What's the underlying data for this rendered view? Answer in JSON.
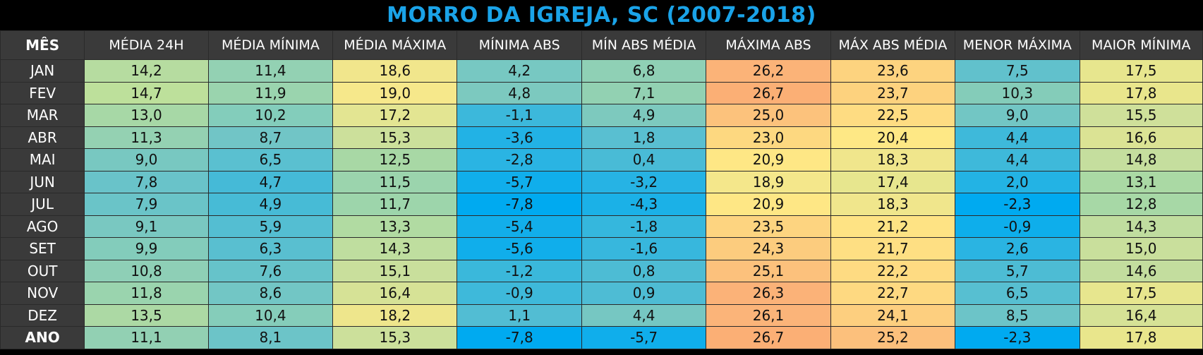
{
  "title": "MORRO DA IGREJA, SC (2007-2018)",
  "columns": [
    "MÊS",
    "MÉDIA 24H",
    "MÉDIA MÍNIMA",
    "MÉDIA MÁXIMA",
    "MÍNIMA ABS",
    "MÍN ABS MÉDIA",
    "MÁXIMA ABS",
    "MÁX ABS MÉDIA",
    "MENOR MÁXIMA",
    "MAIOR MÍNIMA"
  ],
  "rows": [
    {
      "label": "JAN",
      "values": [
        "14,2",
        "11,4",
        "18,6",
        "4,2",
        "6,8",
        "26,2",
        "23,6",
        "7,5",
        "17,5"
      ],
      "colors": [
        "#b6dca0",
        "#93d1b3",
        "#f1e68c",
        "#77c8c2",
        "#8fd0b5",
        "#fbb378",
        "#fdd37f",
        "#61c1cc",
        "#e7e68e"
      ]
    },
    {
      "label": "FEV",
      "values": [
        "14,7",
        "11,9",
        "19,0",
        "4,8",
        "7,1",
        "26,7",
        "23,7",
        "10,3",
        "17,8"
      ],
      "colors": [
        "#bde09b",
        "#9ad4ae",
        "#f6e88b",
        "#7cc9bf",
        "#92d1b2",
        "#fbaf75",
        "#fdd27e",
        "#84ccb9",
        "#e9e68c"
      ]
    },
    {
      "label": "MAR",
      "values": [
        "13,0",
        "10,2",
        "17,2",
        "-1,1",
        "4,9",
        "25,0",
        "22,5",
        "9,0",
        "15,5"
      ],
      "colors": [
        "#a7d8a6",
        "#83cdbb",
        "#e3e592",
        "#3cb8db",
        "#7dc9be",
        "#fcc27c",
        "#fedc82",
        "#72c6c4",
        "#cfe09a"
      ]
    },
    {
      "label": "ABR",
      "values": [
        "11,3",
        "8,7",
        "15,3",
        "-3,6",
        "1,8",
        "23,0",
        "20,4",
        "4,4",
        "16,6"
      ],
      "colors": [
        "#94d1b2",
        "#71c5c6",
        "#cce09b",
        "#22b2e5",
        "#59bfd1",
        "#fdd880",
        "#fee885",
        "#3eb9da",
        "#dbe394"
      ]
    },
    {
      "label": "MAI",
      "values": [
        "9,0",
        "6,5",
        "12,5",
        "-2,8",
        "0,4",
        "20,9",
        "18,3",
        "4,4",
        "14,8"
      ],
      "colors": [
        "#78c8c1",
        "#5ac0d0",
        "#a8d8a5",
        "#2ab4e3",
        "#49bbd6",
        "#fee785",
        "#f0e68c",
        "#3eb9da",
        "#c5de9e"
      ]
    },
    {
      "label": "JUN",
      "values": [
        "7,8",
        "4,7",
        "11,5",
        "-5,7",
        "-3,2",
        "18,9",
        "17,4",
        "2,0",
        "13,1"
      ],
      "colors": [
        "#69c3c9",
        "#45bad7",
        "#9bd4ad",
        "#10aeeb",
        "#26b3e4",
        "#f4e78b",
        "#e7e68e",
        "#23b3e4",
        "#aad9a4"
      ]
    },
    {
      "label": "JUL",
      "values": [
        "7,9",
        "4,9",
        "11,7",
        "-7,8",
        "-4,3",
        "20,9",
        "18,3",
        "-2,3",
        "12,8"
      ],
      "colors": [
        "#6ac4c8",
        "#47bbd6",
        "#9dd5ab",
        "#00aaf0",
        "#1bb1e7",
        "#fee785",
        "#f0e68c",
        "#00aaf0",
        "#a7d8a6"
      ]
    },
    {
      "label": "AGO",
      "values": [
        "9,1",
        "5,9",
        "13,3",
        "-5,4",
        "-1,8",
        "23,5",
        "21,2",
        "-0,9",
        "14,3"
      ],
      "colors": [
        "#79c8c1",
        "#54bed2",
        "#b1dba2",
        "#12aeea",
        "#35b7dd",
        "#fdd480",
        "#fee384",
        "#0eaeeb",
        "#c0dd9f"
      ]
    },
    {
      "label": "SET",
      "values": [
        "9,9",
        "6,3",
        "14,3",
        "-5,6",
        "-1,6",
        "24,3",
        "21,7",
        "2,6",
        "15,0"
      ],
      "colors": [
        "#83ccbb",
        "#59bfd0",
        "#bfde9f",
        "#10aeeb",
        "#37b7dd",
        "#fccc7e",
        "#fedf83",
        "#2ab4e2",
        "#c9df9c"
      ]
    },
    {
      "label": "OUT",
      "values": [
        "10,8",
        "7,6",
        "15,1",
        "-1,2",
        "0,8",
        "25,1",
        "22,2",
        "5,7",
        "14,6"
      ],
      "colors": [
        "#8ecfb6",
        "#66c3ca",
        "#c9df9c",
        "#3ab8db",
        "#4dbcd4",
        "#fcc17c",
        "#fedb82",
        "#4dbcd4",
        "#c3dd9e"
      ]
    },
    {
      "label": "NOV",
      "values": [
        "11,8",
        "8,6",
        "16,4",
        "-0,9",
        "0,9",
        "26,3",
        "22,7",
        "6,5",
        "17,5"
      ],
      "colors": [
        "#9ad4ae",
        "#72c6c5",
        "#d6e296",
        "#3eb9da",
        "#4ebcd4",
        "#fbb278",
        "#fed981",
        "#57bfd1",
        "#e7e68e"
      ]
    },
    {
      "label": "DEZ",
      "values": [
        "13,5",
        "10,4",
        "18,2",
        "1,1",
        "4,4",
        "26,1",
        "24,1",
        "8,5",
        "16,4"
      ],
      "colors": [
        "#acd9a4",
        "#85cdba",
        "#eee68c",
        "#52bdd3",
        "#76c7c2",
        "#fbb479",
        "#fdcf7f",
        "#6cc4c8",
        "#d6e296"
      ]
    },
    {
      "label": "ANO",
      "values": [
        "11,1",
        "8,1",
        "15,3",
        "-7,8",
        "-5,7",
        "26,7",
        "25,2",
        "-2,3",
        "17,8"
      ],
      "colors": [
        "#92d0b3",
        "#6cc4c8",
        "#cce09b",
        "#00aaf0",
        "#10aeeb",
        "#fbaf75",
        "#fcc07c",
        "#00aaf0",
        "#e9e68c"
      ]
    }
  ]
}
